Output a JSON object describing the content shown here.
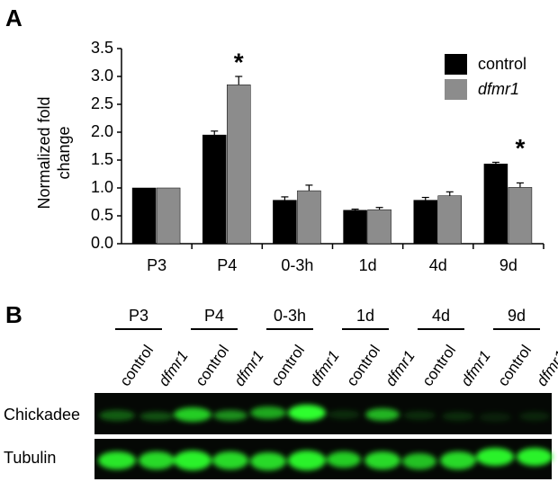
{
  "panels": [
    "A",
    "B"
  ],
  "chart_data": {
    "type": "bar",
    "y_label": "Normalized fold change",
    "categories": [
      "P3",
      "P4",
      "0-3h",
      "1d",
      "4d",
      "9d"
    ],
    "series": [
      {
        "name": "control",
        "color": "#000000",
        "values": [
          1.0,
          1.95,
          0.78,
          0.6,
          0.78,
          1.43
        ],
        "errors": [
          0,
          0.07,
          0.06,
          0.02,
          0.05,
          0.03
        ]
      },
      {
        "name": "dfmr1",
        "color": "#8c8c8c",
        "values": [
          1.0,
          2.85,
          0.95,
          0.61,
          0.86,
          1.01
        ],
        "errors": [
          0,
          0.15,
          0.1,
          0.04,
          0.07,
          0.08
        ]
      }
    ],
    "ylim": [
      0,
      3.5
    ],
    "yticks": [
      {
        "value": 0,
        "label": "0.0"
      },
      {
        "value": 0.5,
        "label": "0.5"
      },
      {
        "value": 1,
        "label": "1.0"
      },
      {
        "value": 1.5,
        "label": "1.5"
      },
      {
        "value": 2,
        "label": "2.0"
      },
      {
        "value": 2.5,
        "label": "2.5"
      },
      {
        "value": 3,
        "label": "3.0"
      },
      {
        "value": 3.5,
        "label": "3.5"
      }
    ],
    "legend": "upper right",
    "annotations": [
      {
        "text": "*",
        "category": "P4"
      },
      {
        "text": "*",
        "category": "9d"
      }
    ]
  },
  "blot": {
    "groups": [
      "P3",
      "P4",
      "0-3h",
      "1d",
      "4d",
      "9d"
    ],
    "lanes": [
      "control",
      "dfmr1"
    ],
    "rows": [
      "Chickadee",
      "Tubulin"
    ]
  }
}
